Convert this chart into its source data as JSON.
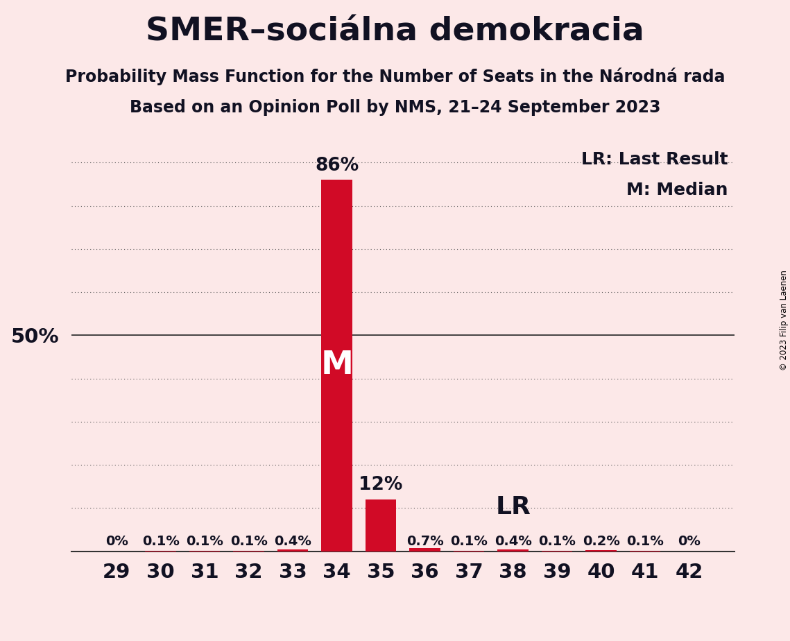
{
  "title": "SMER–sociálna demokracia",
  "subtitle1": "Probability Mass Function for the Number of Seats in the Národná rada",
  "subtitle2": "Based on an Opinion Poll by NMS, 21–24 September 2023",
  "copyright": "© 2023 Filip van Laenen",
  "seats": [
    29,
    30,
    31,
    32,
    33,
    34,
    35,
    36,
    37,
    38,
    39,
    40,
    41,
    42
  ],
  "probabilities": [
    0.0,
    0.001,
    0.001,
    0.001,
    0.004,
    0.86,
    0.12,
    0.007,
    0.001,
    0.004,
    0.001,
    0.002,
    0.001,
    0.0
  ],
  "labels": [
    "0%",
    "0.1%",
    "0.1%",
    "0.1%",
    "0.4%",
    "86%",
    "12%",
    "0.7%",
    "0.1%",
    "0.4%",
    "0.1%",
    "0.2%",
    "0.1%",
    "0%"
  ],
  "bar_color": "#d10a26",
  "background_color": "#fce8e8",
  "median_seat": 34,
  "last_result_seat": 38,
  "legend_lr": "LR: Last Result",
  "legend_m": "M: Median",
  "ylim": [
    0,
    0.95
  ],
  "yticks": [
    0.0,
    0.1,
    0.2,
    0.3,
    0.4,
    0.5,
    0.6,
    0.7,
    0.8,
    0.9
  ],
  "ytick_labels": [
    "",
    "",
    "",
    "",
    "",
    "50%",
    "",
    "",
    "",
    ""
  ],
  "title_fontsize": 34,
  "subtitle_fontsize": 17,
  "axis_fontsize": 21,
  "label_fontsize": 15,
  "legend_fontsize": 18,
  "bar_width": 0.7,
  "text_color": "#111122"
}
